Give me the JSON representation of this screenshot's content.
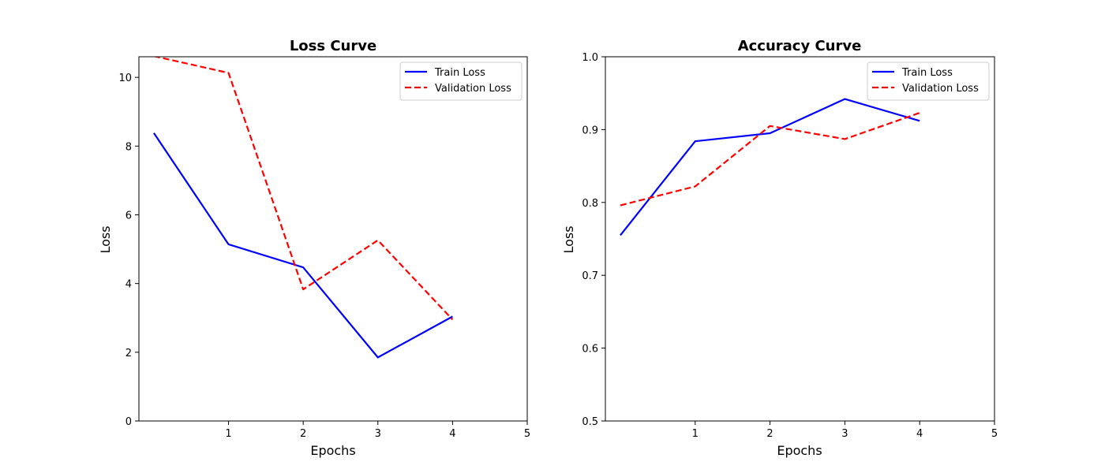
{
  "chart_data": [
    {
      "type": "line",
      "title": "Loss Curve",
      "xlabel": "Epochs",
      "ylabel": "Loss",
      "xlim": [
        -0.2,
        5
      ],
      "ylim": [
        0,
        10.6
      ],
      "xticks": [
        1,
        2,
        3,
        4,
        5
      ],
      "yticks": [
        0,
        2,
        4,
        6,
        8,
        10
      ],
      "x": [
        0,
        1,
        2,
        3,
        4
      ],
      "grid": false,
      "legend_position": "top-right",
      "series": [
        {
          "name": "Train Loss",
          "values": [
            8.38,
            5.14,
            4.47,
            1.85,
            3.04
          ],
          "color": "#0000ff",
          "style": "solid"
        },
        {
          "name": "Validation Loss",
          "values": [
            10.62,
            10.13,
            3.83,
            5.26,
            2.95
          ],
          "color": "#ff0000",
          "style": "dashed"
        }
      ]
    },
    {
      "type": "line",
      "title": "Accuracy Curve",
      "xlabel": "Epochs",
      "ylabel": "Loss",
      "xlim": [
        -0.2,
        5
      ],
      "ylim": [
        0.5,
        1.0
      ],
      "xticks": [
        1,
        2,
        3,
        4,
        5
      ],
      "yticks": [
        0.5,
        0.6,
        0.7,
        0.8,
        0.9,
        1.0
      ],
      "ytick_labels": [
        "0.5",
        "0.6",
        "0.7",
        "0.8",
        "0.9",
        "1.0"
      ],
      "x": [
        0,
        1,
        2,
        3,
        4
      ],
      "grid": false,
      "legend_position": "top-right",
      "series": [
        {
          "name": "Train Loss",
          "values": [
            0.755,
            0.884,
            0.895,
            0.942,
            0.912
          ],
          "color": "#0000ff",
          "style": "solid"
        },
        {
          "name": "Validation Loss",
          "values": [
            0.796,
            0.822,
            0.905,
            0.887,
            0.923
          ],
          "color": "#ff0000",
          "style": "dashed"
        }
      ]
    }
  ]
}
